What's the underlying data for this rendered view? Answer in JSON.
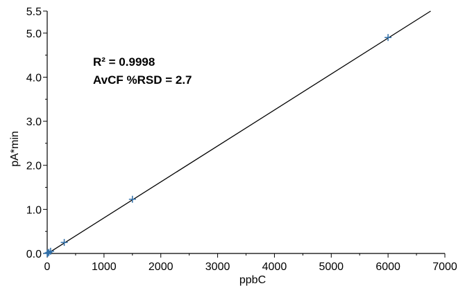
{
  "chart_data": {
    "type": "scatter",
    "title": "",
    "xlabel": "ppbC",
    "ylabel": "pA*min",
    "xlim": [
      0,
      7000
    ],
    "ylim": [
      0,
      5.5
    ],
    "x_ticks": [
      0,
      1000,
      2000,
      3000,
      4000,
      5000,
      6000,
      7000
    ],
    "x_tick_labels": [
      "0",
      "1000",
      "2000",
      "3000",
      "4000",
      "5000",
      "6000",
      "7000"
    ],
    "y_ticks": [
      0,
      1,
      2,
      3,
      4,
      5,
      5.5
    ],
    "y_tick_labels": [
      "0.0",
      "1.0",
      "2.0",
      "3.0",
      "4.0",
      "5.0",
      "5.5"
    ],
    "annotations": [
      "R² = 0.9998",
      "AvCF %RSD = 2.7"
    ],
    "series": [
      {
        "points": [
          {
            "x": 0,
            "y": 0.0
          },
          {
            "x": 6,
            "y": 0.005
          },
          {
            "x": 12,
            "y": 0.01
          },
          {
            "x": 30,
            "y": 0.025
          },
          {
            "x": 60,
            "y": 0.05
          },
          {
            "x": 300,
            "y": 0.25
          },
          {
            "x": 1500,
            "y": 1.23
          },
          {
            "x": 6000,
            "y": 4.9
          }
        ],
        "marker": "plus",
        "color": "#2f6ea8"
      }
    ],
    "fit_line": {
      "from": {
        "x": 0,
        "y": -0.0088
      },
      "to": {
        "x": 6750,
        "y": 5.5
      },
      "color": "#000000"
    },
    "grid": false,
    "legend": "none"
  }
}
